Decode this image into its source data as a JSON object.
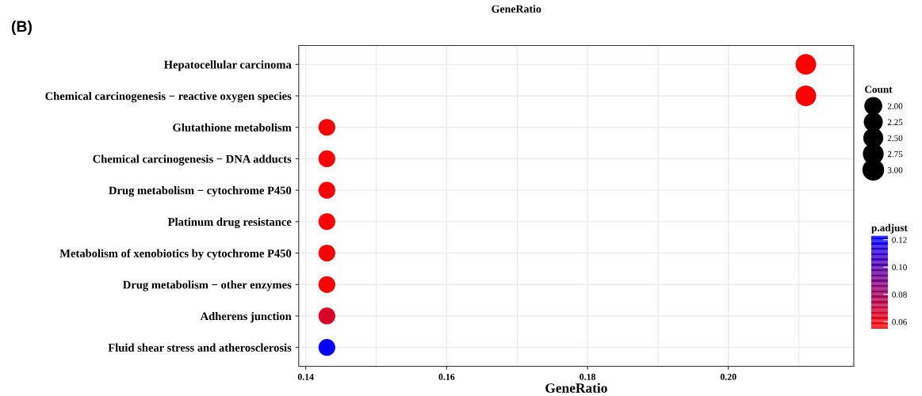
{
  "chart_data": {
    "type": "scatter",
    "title": "(B)",
    "xlabel": "GeneRatio",
    "annotations": [
      "GeneRatio"
    ],
    "legend_title": "Count",
    "clabel": "p.adjust",
    "orientation": "horizontal",
    "categories": [
      "Hepatocellular carcinoma",
      "Chemical carcinogenesis − reactive oxygen species",
      "Glutathione metabolism",
      "Chemical carcinogenesis − DNA adducts",
      "Drug metabolism − cytochrome P450",
      "Platinum drug resistance",
      "Metabolism of xenobiotics by cytochrome P450",
      "Drug metabolism − other enzymes",
      "Adherens junction",
      "Fluid shear stress and atherosclerosis"
    ],
    "values": [
      0.211,
      0.211,
      0.143,
      0.143,
      0.143,
      0.143,
      0.143,
      0.143,
      0.143,
      0.143
    ],
    "sizes": [
      3,
      3,
      2,
      2,
      2,
      2,
      2,
      2,
      2,
      2
    ],
    "cvalues": [
      0.055,
      0.055,
      0.055,
      0.055,
      0.055,
      0.055,
      0.055,
      0.055,
      0.065,
      0.121
    ],
    "size_legend": [
      {
        "value": 2,
        "label": "2.00"
      },
      {
        "value": 2.25,
        "label": "2.25"
      },
      {
        "value": 2.5,
        "label": "2.50"
      },
      {
        "value": 2.75,
        "label": "2.75"
      },
      {
        "value": 3,
        "label": "3.00"
      }
    ],
    "clim": [
      0.055,
      0.123
    ],
    "cticks": [
      {
        "value": 0.06,
        "label": "0.06"
      },
      {
        "value": 0.08,
        "label": "0.08"
      },
      {
        "value": 0.1,
        "label": "0.10"
      },
      {
        "value": 0.12,
        "label": "0.12"
      }
    ],
    "xlim": [
      0.139,
      0.2178
    ],
    "xticks": [
      {
        "value": 0.14,
        "label": "0.14"
      },
      {
        "value": 0.16,
        "label": "0.16"
      },
      {
        "value": 0.18,
        "label": "0.18"
      },
      {
        "value": 0.2,
        "label": "0.20"
      }
    ],
    "grid": true
  }
}
